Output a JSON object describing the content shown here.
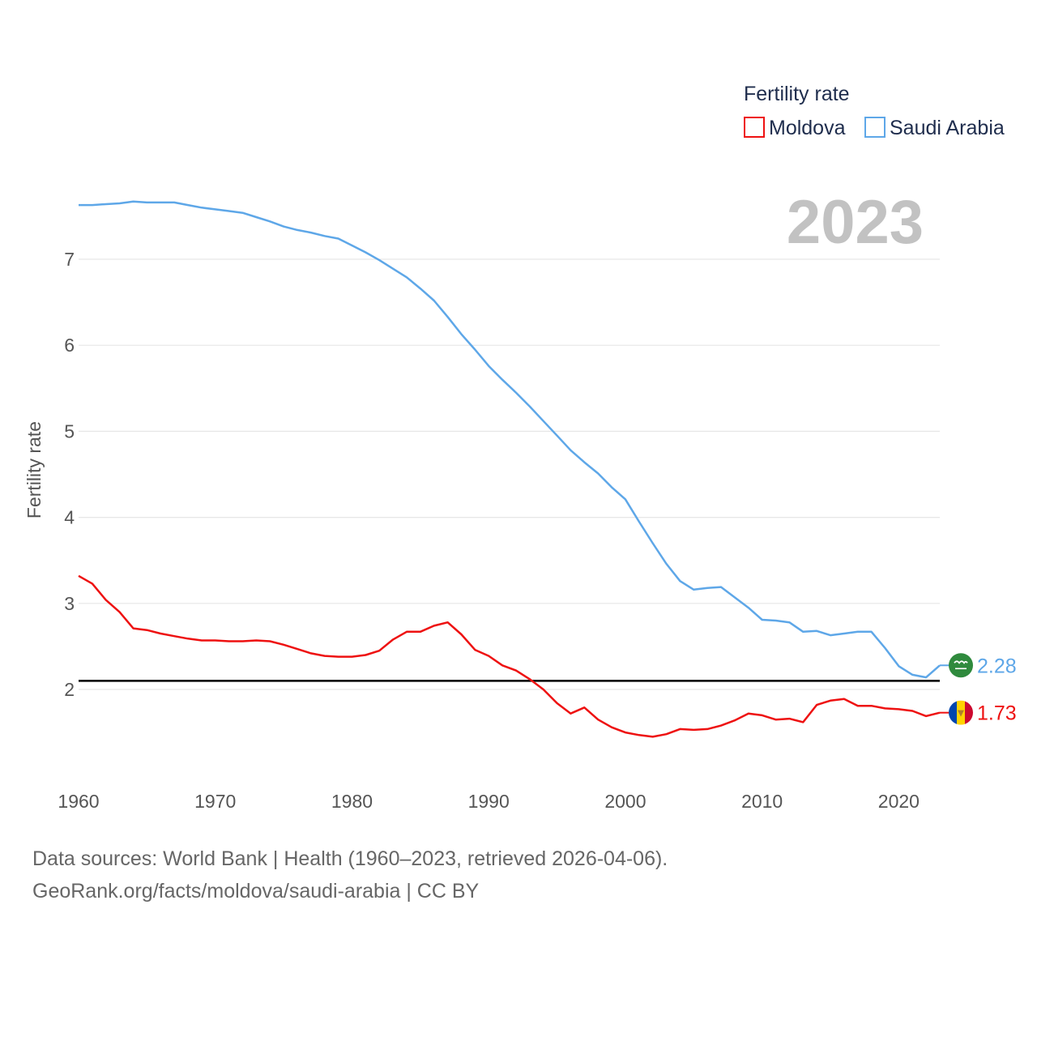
{
  "chart_data": {
    "type": "line",
    "title": "Fertility rate",
    "ylabel": "Fertility rate",
    "xlabel": "",
    "xlim": [
      1960,
      2023
    ],
    "ylim": [
      1.0,
      8.0
    ],
    "x_ticks": [
      1960,
      1970,
      1980,
      1990,
      2000,
      2010,
      2020
    ],
    "y_ticks": [
      2,
      3,
      4,
      5,
      6,
      7
    ],
    "year_label": "2023",
    "reference_line": {
      "y": 2.1,
      "label": ""
    },
    "series": [
      {
        "name": "Moldova",
        "color": "#ee1111",
        "end_label": "1.73",
        "flag_icon": "moldova-flag-icon",
        "values": [
          3.32,
          3.23,
          3.04,
          2.9,
          2.71,
          2.69,
          2.65,
          2.62,
          2.59,
          2.57,
          2.57,
          2.56,
          2.56,
          2.57,
          2.56,
          2.52,
          2.47,
          2.42,
          2.39,
          2.38,
          2.38,
          2.4,
          2.45,
          2.58,
          2.67,
          2.67,
          2.74,
          2.78,
          2.64,
          2.46,
          2.39,
          2.28,
          2.22,
          2.12,
          2.0,
          1.84,
          1.72,
          1.79,
          1.65,
          1.56,
          1.5,
          1.47,
          1.45,
          1.48,
          1.54,
          1.53,
          1.54,
          1.58,
          1.64,
          1.72,
          1.7,
          1.65,
          1.66,
          1.62,
          1.82,
          1.87,
          1.89,
          1.81,
          1.81,
          1.78,
          1.77,
          1.75,
          1.69,
          1.73
        ]
      },
      {
        "name": "Saudi Arabia",
        "color": "#5ea7e8",
        "end_label": "2.28",
        "flag_icon": "saudi-arabia-flag-icon",
        "values": [
          7.63,
          7.63,
          7.64,
          7.65,
          7.67,
          7.66,
          7.66,
          7.66,
          7.63,
          7.6,
          7.58,
          7.56,
          7.54,
          7.49,
          7.44,
          7.38,
          7.34,
          7.31,
          7.27,
          7.24,
          7.16,
          7.08,
          6.99,
          6.89,
          6.79,
          6.66,
          6.52,
          6.33,
          6.13,
          5.95,
          5.76,
          5.6,
          5.45,
          5.29,
          5.12,
          4.95,
          4.78,
          4.64,
          4.51,
          4.35,
          4.21,
          3.95,
          3.7,
          3.46,
          3.26,
          3.16,
          3.18,
          3.19,
          3.07,
          2.95,
          2.81,
          2.8,
          2.78,
          2.67,
          2.68,
          2.63,
          2.65,
          2.67,
          2.67,
          2.48,
          2.27,
          2.17,
          2.14,
          2.28
        ]
      }
    ]
  },
  "legend": {
    "title": "Fertility rate",
    "items": [
      "Moldova",
      "Saudi Arabia"
    ]
  },
  "footer": {
    "source_line": "Data sources: World Bank | Health (1960–2023, retrieved 2026-04-06).",
    "credit_line": "GeoRank.org/facts/moldova/saudi-arabia | CC BY"
  }
}
